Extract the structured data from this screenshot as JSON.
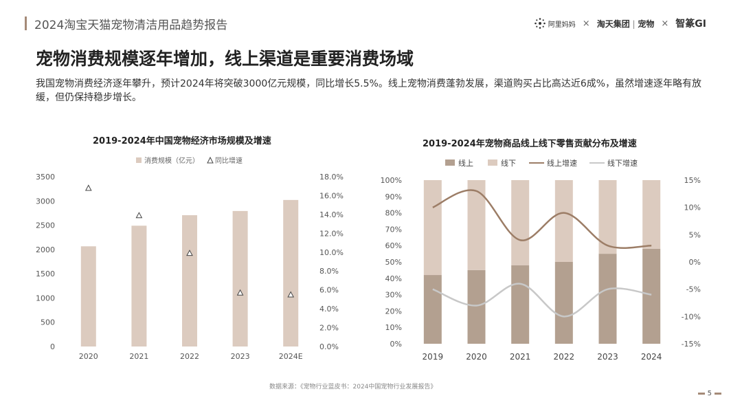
{
  "header": {
    "report_title": "2024淘宝天猫宠物清洁用品趋势报告",
    "logos": {
      "ali": "阿里妈妈",
      "sep": "×",
      "taotian": "淘天集团",
      "pet": "宠物",
      "zm": "智篆GI"
    }
  },
  "headline": "宠物消费规模逐年增加，线上渠道是重要消费场域",
  "summary": "我国宠物消费经济逐年攀升，预计2024年将突破3000亿元规模，同比增长5.5%。线上宠物消费蓬勃发展，渠道购买占比高达近6成%，虽然增速逐年略有放缓，但仍保持稳步增长。",
  "source": "数据来源：《宠物行业蓝皮书：2024中国宠物行业发展报告》",
  "page_number": "5",
  "colors": {
    "bar_light": "#dccbbf",
    "bar_dark": "#b3a090",
    "line_dark": "#9c7d66",
    "line_gray": "#c8c8c8",
    "accent": "#a58a78"
  },
  "chart_data": [
    {
      "type": "bar",
      "title": "2019-2024年中国宠物经济市场规模及增速",
      "categories": [
        "2020",
        "2021",
        "2022",
        "2023",
        "2024E"
      ],
      "series": [
        {
          "name": "消费规模（亿元）",
          "axis": "left",
          "kind": "bar",
          "values": [
            2065,
            2490,
            2706,
            2793,
            3020
          ]
        },
        {
          "name": "同比增速",
          "axis": "right",
          "kind": "marker-triangle",
          "values": [
            16.8,
            13.9,
            9.9,
            5.7,
            5.5
          ]
        }
      ],
      "y_left": {
        "min": 0,
        "max": 3500,
        "ticks": [
          "0",
          "500",
          "1000",
          "1500",
          "2000",
          "2500",
          "3000",
          "3500"
        ]
      },
      "y_right": {
        "min": 0,
        "max": 18,
        "ticks": [
          "0.0%",
          "2.0%",
          "4.0%",
          "6.0%",
          "8.0%",
          "10.0%",
          "12.0%",
          "14.0%",
          "16.0%",
          "18.0%"
        ]
      },
      "legend": [
        "消费规模（亿元）",
        "同比增速"
      ]
    },
    {
      "type": "bar",
      "stacked": true,
      "title": "2019-2024年宠物商品线上线下零售贡献分布及增速",
      "categories": [
        "2019",
        "2020",
        "2021",
        "2022",
        "2023",
        "2024"
      ],
      "series": [
        {
          "name": "线上",
          "axis": "left",
          "kind": "bar",
          "values": [
            42,
            45,
            48,
            50,
            55,
            58
          ]
        },
        {
          "name": "线下",
          "axis": "left",
          "kind": "bar",
          "values": [
            58,
            55,
            52,
            50,
            45,
            42
          ]
        },
        {
          "name": "线上增速",
          "axis": "right",
          "kind": "line",
          "values": [
            10,
            13,
            4,
            9,
            3,
            3
          ]
        },
        {
          "name": "线下增速",
          "axis": "right",
          "kind": "line",
          "values": [
            -5,
            -8,
            -4,
            -10,
            -5,
            -6
          ]
        }
      ],
      "y_left": {
        "min": 0,
        "max": 100,
        "ticks": [
          "0%",
          "10%",
          "20%",
          "30%",
          "40%",
          "50%",
          "60%",
          "70%",
          "80%",
          "90%",
          "100%"
        ]
      },
      "y_right": {
        "min": -15,
        "max": 15,
        "ticks": [
          "-15%",
          "-10%",
          "-5%",
          "0%",
          "5%",
          "10%",
          "15%"
        ]
      },
      "legend": [
        "线上",
        "线下",
        "线上增速",
        "线下增速"
      ]
    }
  ]
}
